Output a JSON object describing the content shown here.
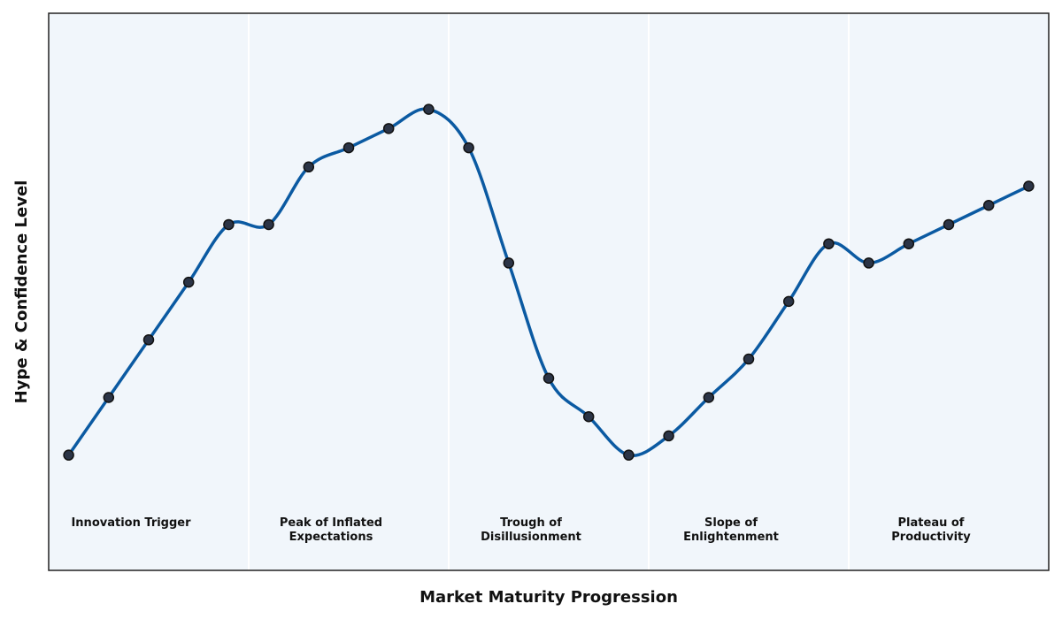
{
  "chart_data": {
    "type": "line",
    "title": "",
    "xlabel": "Market Maturity Progression",
    "ylabel": "Hype & Confidence Level",
    "x": [
      1,
      2,
      3,
      4,
      5,
      6,
      7,
      8,
      9,
      10,
      11,
      12,
      13,
      14,
      15,
      16,
      17,
      18,
      19,
      20,
      21,
      22,
      23,
      24,
      25
    ],
    "series": [
      {
        "values": [
          2.0,
          3.5,
          5.0,
          6.5,
          8.0,
          8.0,
          9.5,
          10.0,
          10.5,
          11.0,
          10.0,
          7.0,
          4.0,
          3.0,
          2.0,
          2.5,
          3.5,
          4.5,
          6.0,
          7.5,
          7.0,
          7.5,
          8.0,
          8.5,
          9.0
        ]
      }
    ],
    "phases": [
      {
        "label": "Innovation Trigger"
      },
      {
        "label": "Peak of Inflated\nExpectations"
      },
      {
        "label": "Trough of\nDisillusionment"
      },
      {
        "label": "Slope of\nEnlightenment"
      },
      {
        "label": "Plateau of\nProductivity"
      }
    ],
    "grid": false,
    "colors": {
      "line": "#0b5aa2",
      "marker_fill": "#2b3446",
      "marker_edge": "#111111",
      "plot_background": "#f1f6fb",
      "phase_divider": "#ffffff",
      "frame": "#222222"
    }
  }
}
